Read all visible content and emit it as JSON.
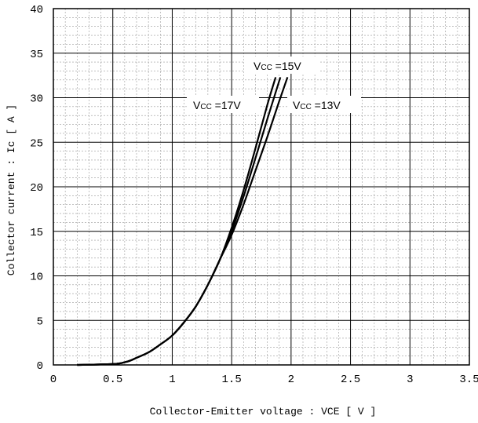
{
  "chart_data": {
    "type": "line",
    "title": "",
    "xlabel": "Collector-Emitter voltage : VCE [ V ]",
    "ylabel": "Collector current : Ic [ A ]",
    "xlim": [
      0,
      3.5
    ],
    "ylim": [
      0,
      40
    ],
    "x_ticks": [
      "0",
      "0.5",
      "1",
      "1.5",
      "2",
      "2.5",
      "3",
      "3.5"
    ],
    "y_ticks": [
      "0",
      "5",
      "10",
      "15",
      "20",
      "25",
      "30",
      "35",
      "40"
    ],
    "grid": true,
    "series": [
      {
        "name": "Vcc =17V",
        "x": [
          0.2,
          0.5,
          0.6,
          0.65,
          0.7,
          0.8,
          0.9,
          1.0,
          1.1,
          1.2,
          1.3,
          1.4,
          1.5,
          1.6,
          1.7,
          1.8,
          1.87
        ],
        "y": [
          0,
          0.1,
          0.3,
          0.5,
          0.8,
          1.4,
          2.3,
          3.3,
          4.8,
          6.6,
          9.0,
          11.8,
          15.4,
          19.6,
          24.3,
          29.2,
          32.3
        ]
      },
      {
        "name": "Vcc =15V",
        "x": [
          0.2,
          0.5,
          0.6,
          0.65,
          0.7,
          0.8,
          0.9,
          1.0,
          1.1,
          1.2,
          1.3,
          1.4,
          1.5,
          1.6,
          1.7,
          1.8,
          1.91
        ],
        "y": [
          0,
          0.1,
          0.3,
          0.5,
          0.8,
          1.4,
          2.3,
          3.3,
          4.8,
          6.6,
          9.0,
          11.8,
          15.0,
          18.9,
          23.2,
          27.6,
          32.3
        ]
      },
      {
        "name": "Vcc =13V",
        "x": [
          0.2,
          0.5,
          0.6,
          0.65,
          0.7,
          0.8,
          0.9,
          1.0,
          1.1,
          1.2,
          1.3,
          1.4,
          1.5,
          1.6,
          1.7,
          1.8,
          1.9,
          1.97
        ],
        "y": [
          0,
          0.1,
          0.3,
          0.5,
          0.8,
          1.4,
          2.3,
          3.3,
          4.8,
          6.6,
          9.0,
          11.8,
          14.6,
          18.0,
          21.8,
          25.6,
          29.6,
          32.3
        ]
      }
    ]
  },
  "labels": {
    "vcc17": {
      "prefix": "V",
      "sub": "CC",
      "rest": " =17V"
    },
    "vcc15": {
      "prefix": "V",
      "sub": "CC",
      "rest": " =15V"
    },
    "vcc13": {
      "prefix": "V",
      "sub": "CC",
      "rest": " =13V"
    }
  }
}
